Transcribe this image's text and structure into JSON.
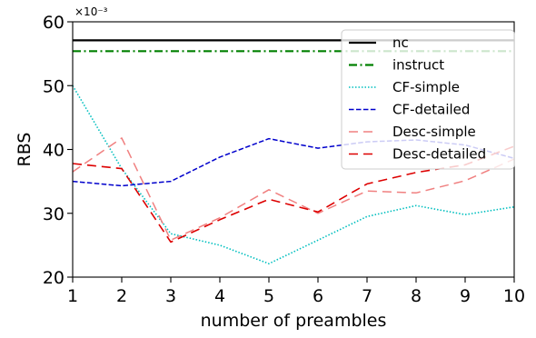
{
  "chart_data": {
    "type": "line",
    "title": "",
    "xlabel": "number of preambles",
    "ylabel": "RBS",
    "y_multiplier": "×10⁻³",
    "xlim": [
      1,
      10
    ],
    "ylim": [
      20,
      60
    ],
    "x_ticks": [
      1,
      2,
      3,
      4,
      5,
      6,
      7,
      8,
      9,
      10
    ],
    "y_ticks": [
      20,
      30,
      40,
      50,
      60
    ],
    "grid": false,
    "legend_position": "top-right",
    "x": [
      1,
      2,
      3,
      4,
      5,
      6,
      7,
      8,
      9,
      10
    ],
    "series": [
      {
        "name": "nc",
        "color": "#000000",
        "style": "solid",
        "width": 2.2,
        "opacity": 1,
        "values": [
          57.1,
          57.1,
          57.1,
          57.1,
          57.1,
          57.1,
          57.1,
          57.1,
          57.1,
          57.1
        ]
      },
      {
        "name": "instruct",
        "color": "#008000",
        "style": "dashdot",
        "width": 2.2,
        "opacity": 1,
        "values": [
          55.4,
          55.4,
          55.4,
          55.4,
          55.4,
          55.4,
          55.4,
          55.4,
          55.4,
          55.4
        ]
      },
      {
        "name": "CF-simple",
        "color": "#00bfbf",
        "style": "dotted",
        "width": 1.6,
        "opacity": 1,
        "values": [
          50.0,
          37.0,
          26.8,
          25.0,
          22.1,
          25.8,
          29.5,
          31.2,
          29.8,
          31.0
        ]
      },
      {
        "name": "CF-detailed",
        "color": "#0000cc",
        "style": "dashed",
        "width": 1.5,
        "opacity": 1,
        "values": [
          35.0,
          34.3,
          35.0,
          38.8,
          41.7,
          40.2,
          41.2,
          41.5,
          40.7,
          38.6
        ]
      },
      {
        "name": "Desc-simple",
        "color": "#f08080",
        "style": "longdash",
        "width": 1.5,
        "opacity": 1,
        "values": [
          36.5,
          41.8,
          25.8,
          29.3,
          33.7,
          30.0,
          33.5,
          33.2,
          35.1,
          38.5
        ]
      },
      {
        "name": "Desc-detailed",
        "color": "#dd0000",
        "style": "longdash",
        "width": 1.6,
        "opacity": 1,
        "values": [
          37.8,
          37.0,
          25.5,
          29.0,
          32.2,
          30.2,
          34.6,
          36.4,
          37.6,
          40.5
        ]
      }
    ]
  }
}
